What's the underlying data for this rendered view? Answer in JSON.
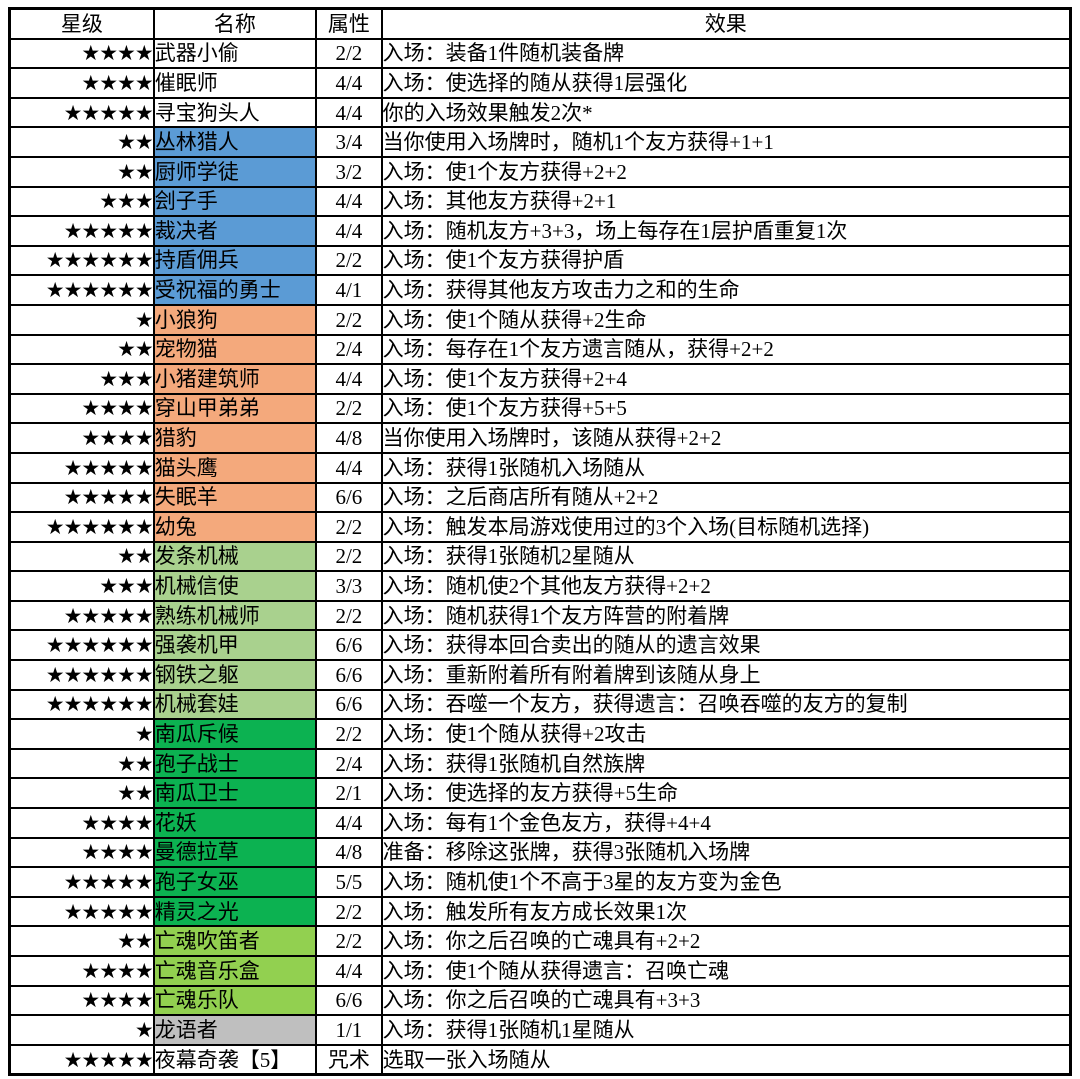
{
  "table": {
    "headers": {
      "stars": "星级",
      "name": "名称",
      "attr": "属性",
      "effect": "效果"
    },
    "rows": [
      {
        "stars": "★★★★",
        "name": "武器小偷",
        "attr": "2/2",
        "effect": "入场：装备1件随机装备牌",
        "group": "neutral"
      },
      {
        "stars": "★★★★",
        "name": "催眠师",
        "attr": "4/4",
        "effect": "入场：使选择的随从获得1层强化",
        "group": "neutral"
      },
      {
        "stars": "★★★★★",
        "name": "寻宝狗头人",
        "attr": "4/4",
        "effect": "你的入场效果触发2次*",
        "group": "neutral"
      },
      {
        "stars": "★★",
        "name": "丛林猎人",
        "attr": "3/4",
        "effect": "当你使用入场牌时，随机1个友方获得+1+1",
        "group": "blue"
      },
      {
        "stars": "★★",
        "name": "厨师学徒",
        "attr": "3/2",
        "effect": "入场：使1个友方获得+2+2",
        "group": "blue"
      },
      {
        "stars": "★★★",
        "name": "刽子手",
        "attr": "4/4",
        "effect": "入场：其他友方获得+2+1",
        "group": "blue"
      },
      {
        "stars": "★★★★★",
        "name": "裁决者",
        "attr": "4/4",
        "effect": "入场：随机友方+3+3，场上每存在1层护盾重复1次",
        "group": "blue"
      },
      {
        "stars": "★★★★★★",
        "name": "持盾佣兵",
        "attr": "2/2",
        "effect": "入场：使1个友方获得护盾",
        "group": "blue"
      },
      {
        "stars": "★★★★★★",
        "name": "受祝福的勇士",
        "attr": "4/1",
        "effect": "入场：获得其他友方攻击力之和的生命",
        "group": "blue"
      },
      {
        "stars": "★",
        "name": "小狼狗",
        "attr": "2/2",
        "effect": "入场：使1个随从获得+2生命",
        "group": "orange"
      },
      {
        "stars": "★★",
        "name": "宠物猫",
        "attr": "2/4",
        "effect": "入场：每存在1个友方遗言随从，获得+2+2",
        "group": "orange"
      },
      {
        "stars": "★★★",
        "name": "小猪建筑师",
        "attr": "4/4",
        "effect": "入场：使1个友方获得+2+4",
        "group": "orange"
      },
      {
        "stars": "★★★★",
        "name": "穿山甲弟弟",
        "attr": "2/2",
        "effect": "入场：使1个友方获得+5+5",
        "group": "orange"
      },
      {
        "stars": "★★★★",
        "name": "猎豹",
        "attr": "4/8",
        "effect": "当你使用入场牌时，该随从获得+2+2",
        "group": "orange"
      },
      {
        "stars": "★★★★★",
        "name": "猫头鹰",
        "attr": "4/4",
        "effect": "入场：获得1张随机入场随从",
        "group": "orange"
      },
      {
        "stars": "★★★★★",
        "name": "失眠羊",
        "attr": "6/6",
        "effect": "入场：之后商店所有随从+2+2",
        "group": "orange"
      },
      {
        "stars": "★★★★★★",
        "name": "幼兔",
        "attr": "2/2",
        "effect": "入场：触发本局游戏使用过的3个入场(目标随机选择)",
        "group": "orange"
      },
      {
        "stars": "★★",
        "name": "发条机械",
        "attr": "2/2",
        "effect": "入场：获得1张随机2星随从",
        "group": "light_green"
      },
      {
        "stars": "★★★",
        "name": "机械信使",
        "attr": "3/3",
        "effect": "入场：随机使2个其他友方获得+2+2",
        "group": "light_green"
      },
      {
        "stars": "★★★★★",
        "name": "熟练机械师",
        "attr": "2/2",
        "effect": "入场：随机获得1个友方阵营的附着牌",
        "group": "light_green"
      },
      {
        "stars": "★★★★★★",
        "name": "强袭机甲",
        "attr": "6/6",
        "effect": "入场：获得本回合卖出的随从的遗言效果",
        "group": "light_green"
      },
      {
        "stars": "★★★★★★",
        "name": "钢铁之躯",
        "attr": "6/6",
        "effect": "入场：重新附着所有附着牌到该随从身上",
        "group": "light_green"
      },
      {
        "stars": "★★★★★★",
        "name": "机械套娃",
        "attr": "6/6",
        "effect": "入场：吞噬一个友方，获得遗言：召唤吞噬的友方的复制",
        "group": "light_green"
      },
      {
        "stars": "★",
        "name": "南瓜斥候",
        "attr": "2/2",
        "effect": "入场：使1个随从获得+2攻击",
        "group": "dark_green"
      },
      {
        "stars": "★★",
        "name": "孢子战士",
        "attr": "2/4",
        "effect": "入场：获得1张随机自然族牌",
        "group": "dark_green"
      },
      {
        "stars": "★★",
        "name": "南瓜卫士",
        "attr": "2/1",
        "effect": "入场：使选择的友方获得+5生命",
        "group": "dark_green"
      },
      {
        "stars": "★★★★",
        "name": "花妖",
        "attr": "4/4",
        "effect": "入场：每有1个金色友方，获得+4+4",
        "group": "dark_green"
      },
      {
        "stars": "★★★★",
        "name": "曼德拉草",
        "attr": "4/8",
        "effect": "准备：移除这张牌，获得3张随机入场牌",
        "group": "dark_green"
      },
      {
        "stars": "★★★★★",
        "name": "孢子女巫",
        "attr": "5/5",
        "effect": "入场：随机使1个不高于3星的友方变为金色",
        "group": "dark_green"
      },
      {
        "stars": "★★★★★",
        "name": "精灵之光",
        "attr": "2/2",
        "effect": "入场：触发所有友方成长效果1次",
        "group": "dark_green"
      },
      {
        "stars": "★★",
        "name": "亡魂吹笛者",
        "attr": "2/2",
        "effect": "入场：你之后召唤的亡魂具有+2+2",
        "group": "lime"
      },
      {
        "stars": "★★★★",
        "name": "亡魂音乐盒",
        "attr": "4/4",
        "effect": "入场：使1个随从获得遗言：召唤亡魂",
        "group": "lime"
      },
      {
        "stars": "★★★★",
        "name": "亡魂乐队",
        "attr": "6/6",
        "effect": "入场：你之后召唤的亡魂具有+3+3",
        "group": "lime"
      },
      {
        "stars": "★",
        "name": "龙语者",
        "attr": "1/1",
        "effect": "入场：获得1张随机1星随从",
        "group": "gray"
      },
      {
        "stars": "★★★★★",
        "name": "夜幕奇袭【5】",
        "attr": "咒术",
        "effect": "选取一张入场随从",
        "group": "neutral"
      }
    ]
  },
  "colors": {
    "neutral": "#FFFFFF",
    "blue": "#5B9BD5",
    "orange": "#F4A97C",
    "light_green": "#A9D18E",
    "dark_green": "#0CB251",
    "lime": "#92D050",
    "gray": "#BFBFBF"
  }
}
